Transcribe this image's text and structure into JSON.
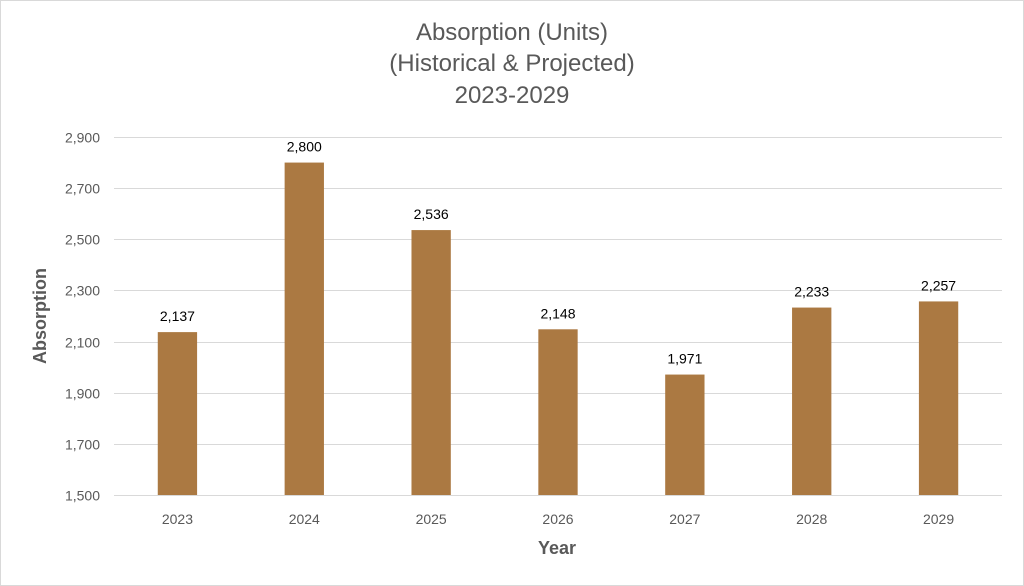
{
  "chart_data": {
    "type": "bar",
    "title_lines": [
      "Absorption (Units)",
      "(Historical & Projected)",
      "2023-2029"
    ],
    "xlabel": "Year",
    "ylabel": "Absorption",
    "categories": [
      "2023",
      "2024",
      "2025",
      "2026",
      "2027",
      "2028",
      "2029"
    ],
    "values": [
      2137,
      2800,
      2536,
      2148,
      1971,
      2233,
      2257
    ],
    "data_labels": [
      "2,137",
      "2,800",
      "2,536",
      "2,148",
      "1,971",
      "2,233",
      "2,257"
    ],
    "ylim": [
      1500,
      2900
    ],
    "yticks": [
      1500,
      1700,
      1900,
      2100,
      2300,
      2500,
      2700,
      2900
    ],
    "ytick_labels": [
      "1,500",
      "1,700",
      "1,900",
      "2,100",
      "2,300",
      "2,500",
      "2,700",
      "2,900"
    ],
    "grid": true,
    "legend": "none",
    "bar_color": "#AB7942"
  }
}
